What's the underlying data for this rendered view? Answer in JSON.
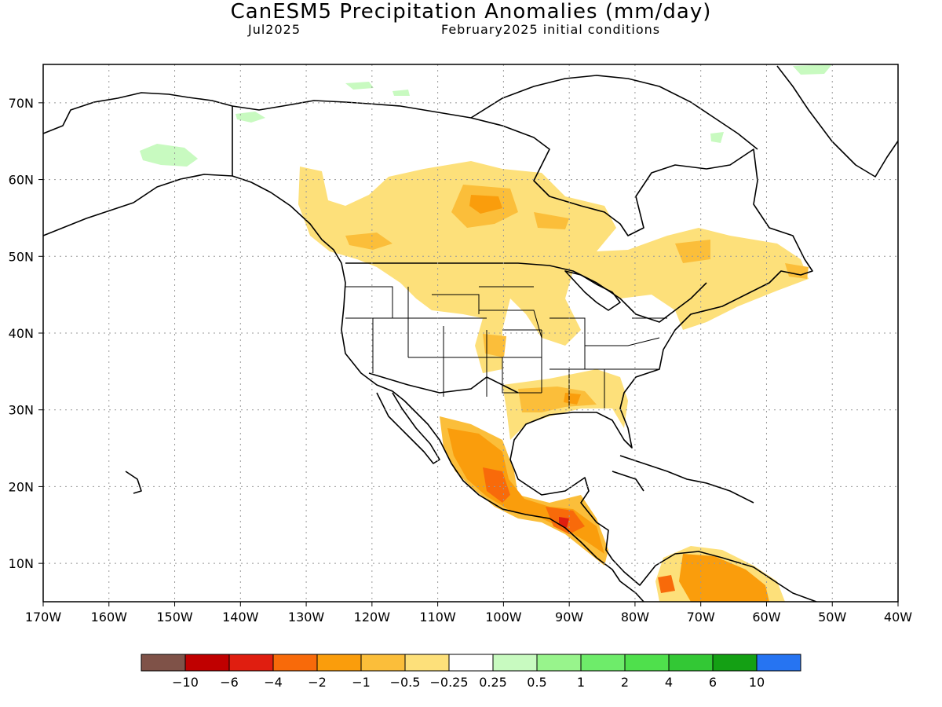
{
  "header": {
    "title": "CanESM5 Precipitation Anomalies (mm/day)",
    "valid_month": "Jul2025",
    "init_conditions": "February2025 initial conditions"
  },
  "map": {
    "region": "North America",
    "lon_range": [
      -170,
      -40
    ],
    "lat_range": [
      5,
      75
    ],
    "x_ticks": [
      "170W",
      "160W",
      "150W",
      "140W",
      "130W",
      "120W",
      "110W",
      "100W",
      "90W",
      "80W",
      "70W",
      "60W",
      "50W",
      "40W"
    ],
    "y_ticks": [
      "10N",
      "20N",
      "30N",
      "40N",
      "50N",
      "60N",
      "70N"
    ],
    "grid": "dotted"
  },
  "legend": {
    "colors": [
      "#7f5248",
      "#c00000",
      "#e01e10",
      "#f86a0a",
      "#fa9d0c",
      "#fbbe3a",
      "#fde07a",
      "#ffffff",
      "#c8fac0",
      "#98f48c",
      "#6eec6a",
      "#4fe04c",
      "#33c835",
      "#14a014",
      "#2674f2"
    ],
    "labels": [
      "-10",
      "-6",
      "-4",
      "-2",
      "-1",
      "-0.5",
      "-0.25",
      "0.25",
      "0.5",
      "1",
      "2",
      "4",
      "6",
      "10"
    ]
  }
}
